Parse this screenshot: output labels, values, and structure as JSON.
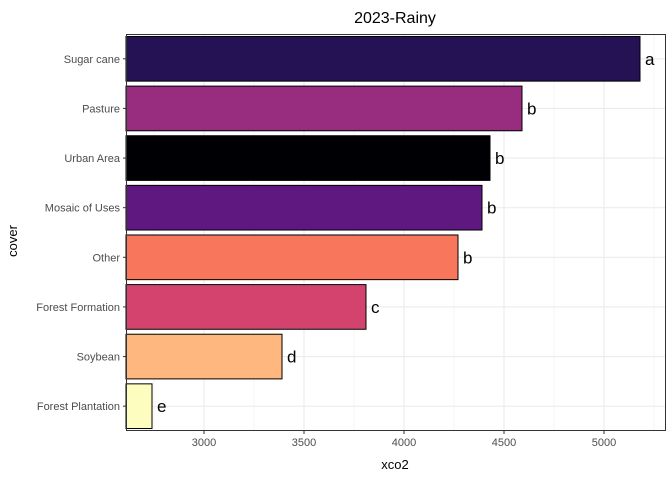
{
  "chart_data": {
    "type": "bar",
    "orientation": "horizontal",
    "title": "2023-Rainy",
    "xlabel": "xco2",
    "ylabel": "cover",
    "xlim": [
      2610,
      5310
    ],
    "xticks": [
      3000,
      3500,
      4000,
      4500,
      5000
    ],
    "xtick_labels": [
      "3000",
      "3500",
      "4000",
      "4500",
      "5000"
    ],
    "grid": true,
    "legend": "none",
    "categories": [
      "Sugar cane",
      "Pasture",
      "Urban Area",
      "Mosaic of Uses",
      "Other",
      "Forest Formation",
      "Soybean",
      "Forest Plantation"
    ],
    "values": [
      5180,
      4590,
      4430,
      4390,
      4270,
      3810,
      3390,
      2740
    ],
    "labels": [
      "a",
      "b",
      "b",
      "b",
      "b",
      "c",
      "d",
      "e"
    ],
    "colors": [
      "#251255",
      "#982d80",
      "#000004",
      "#5f187f",
      "#f8765c",
      "#d3436e",
      "#feb77e",
      "#fcfdbf"
    ]
  }
}
